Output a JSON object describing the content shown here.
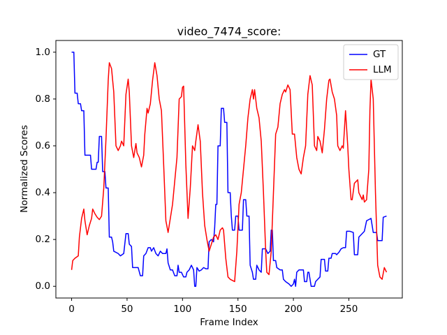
{
  "chart_data": {
    "type": "line",
    "title": "video_7474_score:",
    "x_label": "Frame Index",
    "y_label": "Normalized Scores",
    "xlim": [
      -14.2,
      298.2
    ],
    "ylim": [
      -0.05,
      1.05
    ],
    "xticks": [
      0,
      50,
      100,
      150,
      200,
      250
    ],
    "yticks": [
      {
        "value": 0,
        "label": "0.0"
      },
      {
        "value": 0.2,
        "label": "0.2"
      },
      {
        "value": 0.4,
        "label": "0.4"
      },
      {
        "value": 0.6,
        "label": "0.6"
      },
      {
        "value": 0.8,
        "label": "0.8"
      },
      {
        "value": 1,
        "label": "1.0"
      }
    ],
    "legend": "upper right",
    "grid": false,
    "series": [
      {
        "name": "GT",
        "color": "#0000ff",
        "x": [
          0,
          2,
          3,
          5,
          6,
          8,
          9,
          11,
          12,
          17,
          18,
          22,
          23,
          24,
          25,
          27,
          28,
          30,
          31,
          33,
          34,
          36,
          37,
          38,
          42,
          44,
          47,
          49,
          51,
          52,
          54,
          55,
          60,
          62,
          64,
          65,
          67,
          69,
          71,
          72,
          74,
          76,
          78,
          80,
          82,
          85,
          86,
          87,
          89,
          91,
          93,
          95,
          96,
          97,
          99,
          101,
          103,
          104,
          106,
          108,
          110,
          111,
          112,
          113,
          115,
          117,
          119,
          121,
          123,
          124,
          126,
          128,
          129,
          130,
          131,
          132,
          134,
          135,
          137,
          138,
          140,
          141,
          143,
          144,
          145,
          147,
          148,
          150,
          151,
          154,
          155,
          157,
          158,
          160,
          161,
          163,
          164,
          166,
          167,
          169,
          171,
          172,
          175,
          177,
          179,
          180,
          181,
          182,
          184,
          185,
          188,
          190,
          191,
          193,
          196,
          198,
          200,
          201,
          202,
          203,
          205,
          209,
          210,
          212,
          213,
          214,
          216,
          219,
          220,
          222,
          224,
          225,
          228,
          229,
          231,
          232,
          234,
          235,
          238,
          239,
          241,
          243,
          245,
          247,
          248,
          251,
          254,
          255,
          258,
          259,
          262,
          264,
          266,
          268,
          270,
          272,
          275,
          276,
          280,
          281,
          284
        ],
        "values": [
          1.0,
          1.0,
          0.825,
          0.825,
          0.78,
          0.78,
          0.75,
          0.75,
          0.56,
          0.56,
          0.5,
          0.5,
          0.53,
          0.53,
          0.64,
          0.64,
          0.49,
          0.49,
          0.42,
          0.42,
          0.21,
          0.21,
          0.19,
          0.15,
          0.14,
          0.13,
          0.14,
          0.225,
          0.225,
          0.18,
          0.17,
          0.08,
          0.08,
          0.045,
          0.045,
          0.13,
          0.14,
          0.165,
          0.165,
          0.15,
          0.165,
          0.14,
          0.13,
          0.15,
          0.14,
          0.14,
          0.16,
          0.1,
          0.07,
          0.07,
          0.045,
          0.045,
          0.09,
          0.06,
          0.06,
          0.04,
          0.04,
          0.06,
          0.07,
          0.09,
          0.07,
          0.0,
          0.0,
          0.08,
          0.065,
          0.07,
          0.08,
          0.075,
          0.075,
          0.19,
          0.2,
          0.19,
          0.25,
          0.35,
          0.35,
          0.6,
          0.6,
          0.76,
          0.76,
          0.7,
          0.7,
          0.4,
          0.4,
          0.3,
          0.24,
          0.24,
          0.3,
          0.3,
          0.24,
          0.24,
          0.37,
          0.37,
          0.3,
          0.3,
          0.09,
          0.06,
          0.03,
          0.03,
          0.09,
          0.07,
          0.06,
          0.16,
          0.16,
          0.14,
          0.15,
          0.24,
          0.24,
          0.11,
          0.11,
          0.08,
          0.07,
          0.07,
          0.03,
          0.02,
          0.01,
          0.0,
          0.01,
          0.03,
          0.0,
          0.06,
          0.07,
          0.07,
          0.02,
          0.02,
          0.06,
          0.06,
          0.0,
          0.0,
          0.02,
          0.03,
          0.04,
          0.115,
          0.115,
          0.065,
          0.065,
          0.12,
          0.12,
          0.14,
          0.14,
          0.135,
          0.145,
          0.16,
          0.165,
          0.165,
          0.235,
          0.235,
          0.23,
          0.135,
          0.135,
          0.21,
          0.225,
          0.235,
          0.28,
          0.285,
          0.29,
          0.23,
          0.23,
          0.195,
          0.195,
          0.295,
          0.3
        ]
      },
      {
        "name": "LLM",
        "color": "#ff0000",
        "x": [
          0,
          1,
          3,
          6,
          7,
          9,
          11,
          12,
          14,
          16,
          18,
          19,
          21,
          23,
          25,
          27,
          29,
          31,
          33,
          34,
          36,
          38,
          40,
          42,
          44,
          45,
          47,
          49,
          51,
          52,
          54,
          56,
          58,
          59,
          61,
          63,
          65,
          66,
          68,
          69,
          71,
          73,
          75,
          77,
          79,
          81,
          83,
          85,
          87,
          89,
          91,
          93,
          95,
          97,
          99,
          100,
          101,
          103,
          105,
          107,
          109,
          111,
          112,
          114,
          116,
          118,
          120,
          122,
          124,
          126,
          128,
          130,
          132,
          134,
          136,
          137,
          139,
          141,
          143,
          145,
          147,
          149,
          151,
          153,
          155,
          157,
          159,
          161,
          163,
          164,
          165,
          167,
          169,
          171,
          173,
          175,
          176,
          178,
          180,
          182,
          184,
          186,
          188,
          190,
          192,
          193,
          195,
          197,
          199,
          201,
          203,
          205,
          207,
          209,
          211,
          213,
          215,
          217,
          219,
          221,
          222,
          224,
          226,
          228,
          230,
          232,
          233,
          235,
          237,
          239,
          240,
          242,
          244,
          245,
          247,
          249,
          250,
          252,
          253,
          255,
          258,
          259,
          261,
          262,
          263,
          264,
          266,
          268,
          269,
          270,
          272,
          274,
          276,
          278,
          280,
          282,
          284
        ],
        "values": [
          0.07,
          0.11,
          0.12,
          0.13,
          0.21,
          0.29,
          0.33,
          0.28,
          0.22,
          0.26,
          0.29,
          0.33,
          0.31,
          0.295,
          0.285,
          0.3,
          0.42,
          0.63,
          0.88,
          0.955,
          0.93,
          0.83,
          0.6,
          0.58,
          0.6,
          0.62,
          0.6,
          0.82,
          0.885,
          0.83,
          0.6,
          0.55,
          0.61,
          0.57,
          0.55,
          0.51,
          0.56,
          0.65,
          0.76,
          0.74,
          0.78,
          0.88,
          0.955,
          0.9,
          0.8,
          0.75,
          0.52,
          0.28,
          0.23,
          0.29,
          0.35,
          0.45,
          0.55,
          0.8,
          0.81,
          0.85,
          0.855,
          0.52,
          0.29,
          0.42,
          0.6,
          0.58,
          0.62,
          0.69,
          0.62,
          0.4,
          0.26,
          0.2,
          0.15,
          0.18,
          0.21,
          0.22,
          0.2,
          0.24,
          0.25,
          0.24,
          0.12,
          0.04,
          0.03,
          0.025,
          0.02,
          0.15,
          0.35,
          0.4,
          0.5,
          0.6,
          0.72,
          0.8,
          0.84,
          0.8,
          0.84,
          0.76,
          0.72,
          0.62,
          0.4,
          0.15,
          0.06,
          0.05,
          0.15,
          0.4,
          0.65,
          0.68,
          0.78,
          0.82,
          0.84,
          0.83,
          0.86,
          0.84,
          0.65,
          0.65,
          0.55,
          0.5,
          0.48,
          0.55,
          0.6,
          0.82,
          0.9,
          0.86,
          0.6,
          0.58,
          0.64,
          0.62,
          0.57,
          0.67,
          0.8,
          0.88,
          0.885,
          0.83,
          0.8,
          0.73,
          0.6,
          0.58,
          0.6,
          0.59,
          0.75,
          0.6,
          0.5,
          0.37,
          0.37,
          0.44,
          0.455,
          0.4,
          0.38,
          0.37,
          0.39,
          0.36,
          0.37,
          0.5,
          0.75,
          0.885,
          0.8,
          0.4,
          0.09,
          0.04,
          0.03,
          0.08,
          0.06
        ]
      }
    ]
  }
}
